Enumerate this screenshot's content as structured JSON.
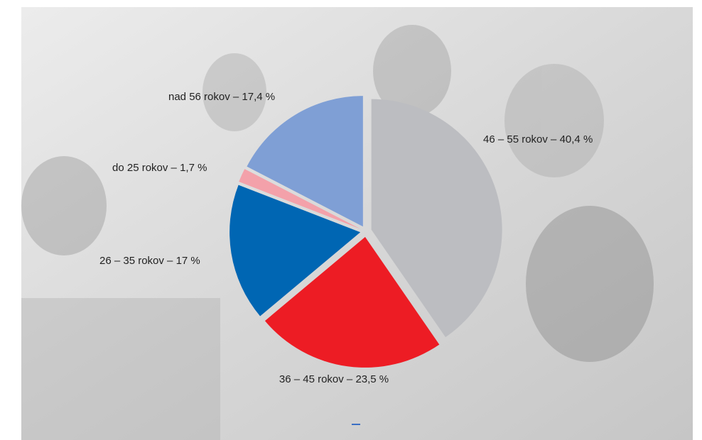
{
  "chart_data": {
    "type": "pie",
    "categories": [
      "46 – 55 rokov –",
      "36 – 45 rokov –",
      "26 – 35 rokov –",
      "do 25 rokov –",
      "nad 56 rokov –"
    ],
    "values": [
      40.4,
      23.5,
      17,
      1.7,
      17.4
    ],
    "value_labels": [
      "40,4 %",
      "23,5 %",
      "17 %",
      "1,7 %",
      "17,4 %"
    ],
    "colors": [
      "#bcbdc1",
      "#ed1c24",
      "#0066b3",
      "#f3a1aa",
      "#7f9fd5"
    ]
  }
}
